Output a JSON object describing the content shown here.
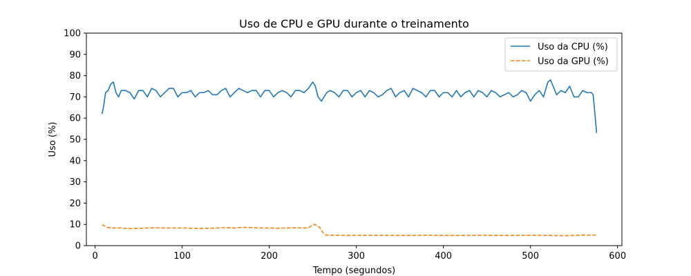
{
  "chart_data": {
    "type": "line",
    "title": "Uso de CPU e GPU durante o treinamento",
    "xlabel": "Tempo (segundos)",
    "ylabel": "Uso (%)",
    "xlim": [
      -10,
      605
    ],
    "ylim": [
      0,
      100
    ],
    "xticks": [
      0,
      100,
      200,
      300,
      400,
      500,
      600
    ],
    "yticks": [
      0,
      10,
      20,
      30,
      40,
      50,
      60,
      70,
      80,
      90,
      100
    ],
    "legend_position": "top-right",
    "series": [
      {
        "name": "Uso da CPU (%)",
        "color": "#1f77b4",
        "style": "solid",
        "x": [
          8,
          10,
          12,
          15,
          18,
          21,
          24,
          27,
          30,
          35,
          40,
          45,
          50,
          55,
          60,
          65,
          70,
          75,
          80,
          85,
          90,
          95,
          100,
          105,
          110,
          115,
          120,
          125,
          130,
          135,
          140,
          145,
          150,
          155,
          160,
          165,
          170,
          175,
          180,
          185,
          190,
          195,
          200,
          205,
          210,
          215,
          220,
          225,
          230,
          235,
          240,
          245,
          250,
          253,
          256,
          260,
          263,
          266,
          270,
          275,
          280,
          285,
          290,
          295,
          300,
          305,
          310,
          315,
          320,
          325,
          330,
          335,
          340,
          345,
          350,
          355,
          360,
          365,
          370,
          375,
          380,
          385,
          390,
          395,
          400,
          405,
          410,
          415,
          420,
          425,
          430,
          435,
          440,
          445,
          450,
          455,
          460,
          465,
          470,
          475,
          480,
          485,
          490,
          495,
          500,
          505,
          510,
          515,
          520,
          523,
          526,
          530,
          535,
          540,
          545,
          550,
          555,
          560,
          565,
          570,
          572,
          574,
          576
        ],
        "y": [
          62,
          66,
          72,
          73,
          76,
          77,
          72,
          70,
          73,
          73,
          72,
          69,
          73,
          73,
          70,
          74,
          73,
          70,
          72,
          74,
          74,
          70,
          72,
          72,
          73,
          70,
          72,
          72,
          73,
          71,
          71,
          73,
          74,
          70,
          72,
          74,
          73,
          72,
          73,
          73,
          70,
          73,
          73,
          70,
          72,
          73,
          72,
          70,
          73,
          73,
          72,
          74,
          77,
          75,
          70,
          68,
          70,
          72,
          73,
          72,
          70,
          73,
          73,
          70,
          72,
          73,
          70,
          73,
          72,
          70,
          71,
          73,
          74,
          70,
          72,
          73,
          70,
          74,
          73,
          72,
          70,
          73,
          73,
          70,
          72,
          72,
          70,
          73,
          70,
          72,
          73,
          70,
          73,
          72,
          70,
          73,
          72,
          70,
          71,
          72,
          70,
          71,
          73,
          72,
          68,
          71,
          73,
          70,
          77,
          78,
          75,
          71,
          73,
          72,
          75,
          70,
          70,
          73,
          72,
          72,
          71,
          62,
          53
        ]
      },
      {
        "name": "Uso da GPU (%)",
        "color": "#ff7f0e",
        "style": "dashed",
        "x": [
          8,
          10,
          12,
          15,
          20,
          30,
          40,
          50,
          60,
          70,
          80,
          90,
          100,
          110,
          120,
          130,
          140,
          150,
          160,
          170,
          180,
          190,
          200,
          210,
          220,
          230,
          240,
          245,
          250,
          252,
          255,
          258,
          262,
          265,
          270,
          280,
          290,
          300,
          320,
          340,
          360,
          380,
          400,
          420,
          440,
          460,
          480,
          500,
          520,
          540,
          550,
          560,
          570,
          575
        ],
        "y": [
          9.8,
          9.5,
          8.8,
          8.5,
          8.3,
          8.3,
          8.0,
          8.1,
          8.3,
          8.4,
          8.3,
          8.3,
          8.3,
          8.2,
          8.0,
          8.2,
          8.3,
          8.5,
          8.3,
          8.6,
          8.5,
          8.3,
          8.3,
          8.2,
          8.3,
          8.4,
          8.3,
          8.4,
          9.8,
          10.0,
          9.5,
          8.5,
          6.0,
          5.0,
          4.9,
          4.9,
          4.8,
          4.8,
          4.9,
          4.8,
          4.8,
          4.9,
          4.8,
          4.8,
          4.9,
          4.8,
          4.8,
          4.9,
          4.8,
          4.7,
          4.8,
          5.0,
          4.9,
          5.0
        ]
      }
    ]
  }
}
